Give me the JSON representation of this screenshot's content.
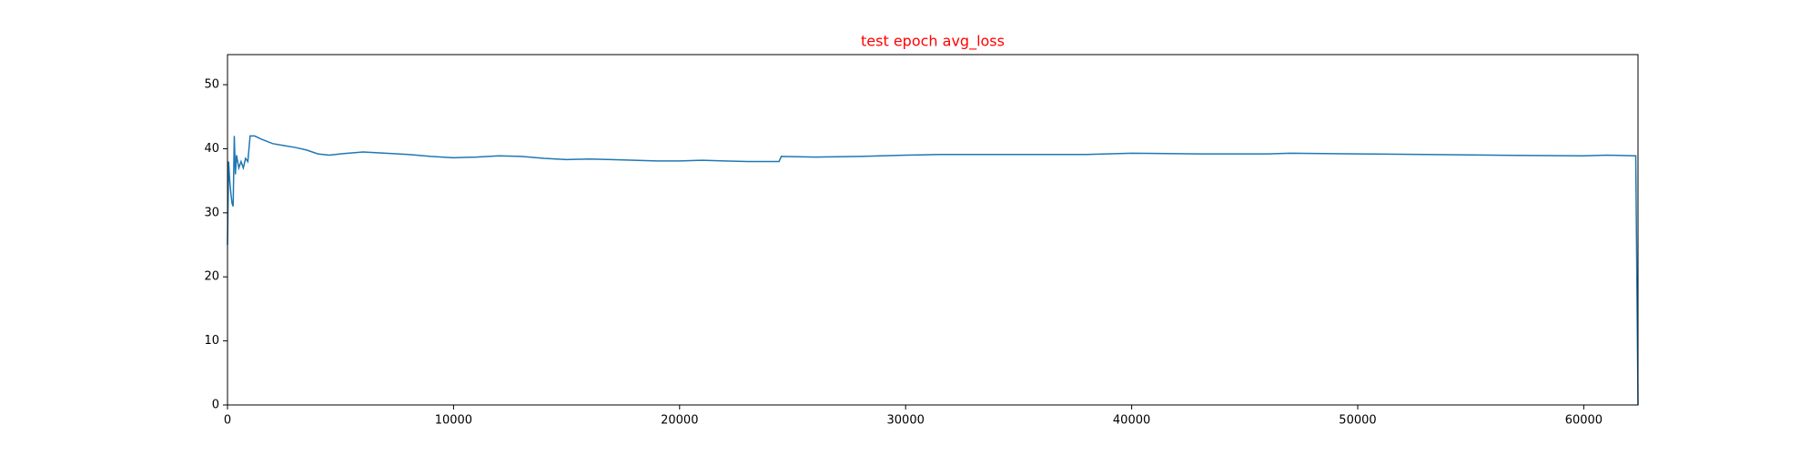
{
  "chart_data": {
    "type": "line",
    "title": "test epoch avg_loss",
    "x": [
      0,
      50,
      100,
      150,
      200,
      250,
      300,
      350,
      400,
      500,
      600,
      700,
      800,
      900,
      1000,
      1200,
      1500,
      2000,
      2500,
      3000,
      3500,
      4000,
      4500,
      5000,
      6000,
      7000,
      8000,
      9000,
      10000,
      11000,
      12000,
      13000,
      14000,
      15000,
      16000,
      17000,
      18000,
      19000,
      20000,
      21000,
      22000,
      23000,
      24400,
      24500,
      26000,
      28000,
      30000,
      31500,
      35000,
      38000,
      40000,
      43000,
      46000,
      47000,
      50000,
      53000,
      56000,
      60000,
      61000,
      62300,
      62400
    ],
    "series": [
      {
        "name": "avg_loss",
        "color": "#1f77b4",
        "values": [
          25,
          38,
          35,
          33,
          31.5,
          31,
          42,
          36,
          39,
          37,
          38,
          37,
          38.5,
          38,
          42,
          42,
          41.5,
          40.8,
          40.5,
          40.2,
          39.8,
          39.2,
          39,
          39.2,
          39.5,
          39.3,
          39.1,
          38.8,
          38.6,
          38.7,
          38.9,
          38.8,
          38.5,
          38.3,
          38.4,
          38.3,
          38.2,
          38.1,
          38.1,
          38.2,
          38.1,
          38,
          38,
          38.8,
          38.7,
          38.8,
          39,
          39.1,
          39.1,
          39.1,
          39.3,
          39.2,
          39.2,
          39.3,
          39.2,
          39.1,
          39,
          38.9,
          39,
          38.9,
          0
        ]
      }
    ],
    "xlim": [
      0,
      62400
    ],
    "ylim": [
      0,
      54.7
    ],
    "xticks": [
      0,
      10000,
      20000,
      30000,
      40000,
      50000,
      60000
    ],
    "yticks": [
      0,
      10,
      20,
      30,
      40,
      50
    ]
  }
}
